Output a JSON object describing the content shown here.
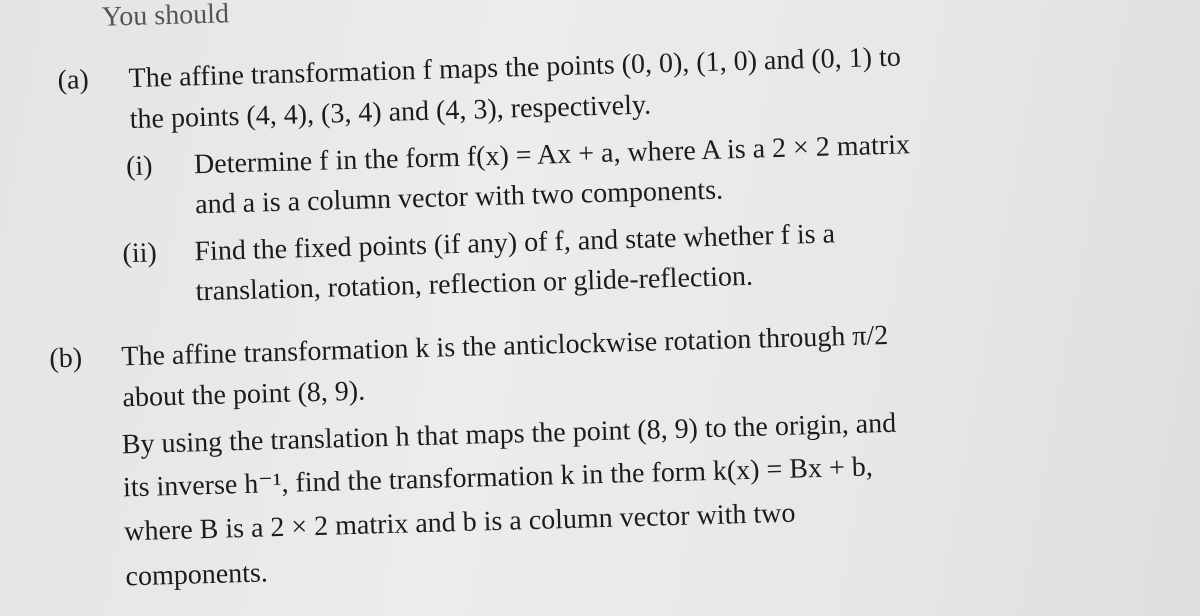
{
  "intro": "You should",
  "part_a": {
    "label": "(a)",
    "lines": [
      "The affine transformation f maps the points (0, 0), (1, 0) and (0, 1) to",
      "the points (4, 4), (3, 4) and (4, 3), respectively."
    ],
    "i": {
      "label": "(i)",
      "lines": [
        "Determine f in the form f(x) = Ax + a, where A is a 2 × 2 matrix",
        "and a is a column vector with two components."
      ]
    },
    "ii": {
      "label": "(ii)",
      "lines": [
        "Find the fixed points (if any) of f, and state whether f is a",
        "translation, rotation, reflection or glide-reflection."
      ]
    }
  },
  "part_b": {
    "label": "(b)",
    "lines": [
      "The affine transformation k is the anticlockwise rotation through π/2",
      "about the point (8, 9).",
      "By using the translation h that maps the point (8, 9) to the origin, and",
      "its inverse h⁻¹, find the transformation k in the form k(x) = Bx + b,",
      "where B is a 2 × 2 matrix and b is a column vector with two",
      "components."
    ]
  }
}
